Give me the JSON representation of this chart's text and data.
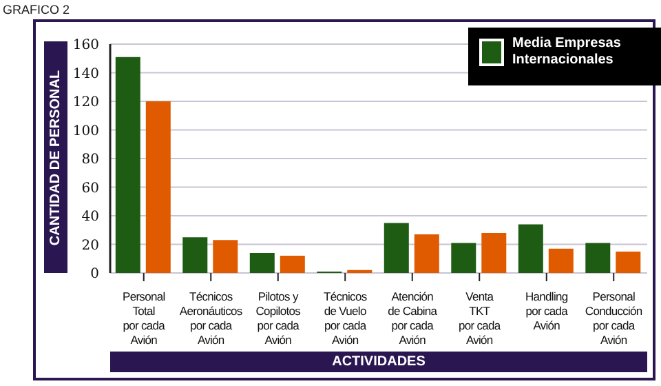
{
  "chart_data": {
    "type": "bar",
    "title": "GRAFICO 2",
    "xlabel": "ACTIVIDADES",
    "ylabel": "CANTIDAD DE PERSONAL",
    "categories": [
      "Personal\nTotal\npor cada\nAvión",
      "Técnicos\nAeronáuticos\npor cada\nAvión",
      "Pilotos y\nCopilotos\npor cada\nAvión",
      "Técnicos\nde Vuelo\npor cada\nAvión",
      "Atención\nde Cabina\npor cada\nAvión",
      "Venta\nTKT\npor cada\nAvión",
      "Handling\npor cada\nAvión",
      "Personal\nConducción\npor cada\nAvión"
    ],
    "series": [
      {
        "name": "Media Empresas Internacionales",
        "color": "#1e5c14",
        "values": [
          151,
          25,
          14,
          1,
          35,
          21,
          34,
          21
        ]
      },
      {
        "color": "#e05a00",
        "values": [
          120,
          23,
          12,
          2,
          27,
          28,
          17,
          15
        ]
      }
    ],
    "ylim": [
      0,
      160
    ],
    "yticks": [
      0,
      20,
      40,
      60,
      80,
      100,
      120,
      140,
      160
    ],
    "grid": "y",
    "legend": "top right"
  }
}
